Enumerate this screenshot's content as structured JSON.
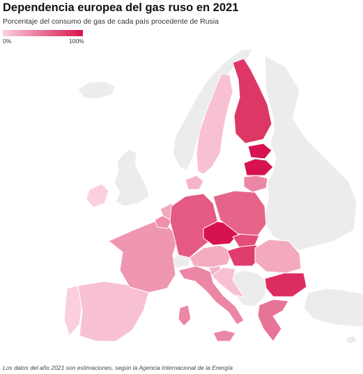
{
  "header": {
    "title": "Dependencia europea del gas ruso en 2021",
    "subtitle": "Porcentaje del consumo de gas de cada país procedente de Rusia"
  },
  "legend": {
    "min_label": "0%",
    "max_label": "100%",
    "color_min": "#fbd0dc",
    "color_max": "#d6134e"
  },
  "colors": {
    "no_data": "#ececec",
    "border": "#ffffff"
  },
  "footer": {
    "note": "Los datos del año 2021 son estimaciones, según la Agencia Internacional de la Energía"
  }
}
